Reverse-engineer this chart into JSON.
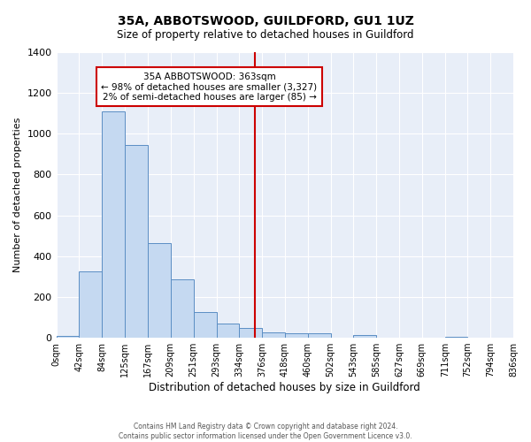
{
  "title": "35A, ABBOTSWOOD, GUILDFORD, GU1 1UZ",
  "subtitle": "Size of property relative to detached houses in Guildford",
  "xlabel": "Distribution of detached houses by size in Guildford",
  "ylabel": "Number of detached properties",
  "bar_edges": [
    0,
    42,
    84,
    125,
    167,
    209,
    251,
    293,
    334,
    376,
    418,
    460,
    502,
    543,
    585,
    627,
    669,
    711,
    752,
    794,
    836
  ],
  "bar_heights": [
    10,
    325,
    1110,
    945,
    465,
    285,
    125,
    70,
    50,
    25,
    20,
    20,
    0,
    15,
    0,
    0,
    0,
    5,
    0,
    0
  ],
  "bar_color": "#c5d9f1",
  "bar_edge_color": "#5b8ec4",
  "tick_labels": [
    "0sqm",
    "42sqm",
    "84sqm",
    "125sqm",
    "167sqm",
    "209sqm",
    "251sqm",
    "293sqm",
    "334sqm",
    "376sqm",
    "418sqm",
    "460sqm",
    "502sqm",
    "543sqm",
    "585sqm",
    "627sqm",
    "669sqm",
    "711sqm",
    "752sqm",
    "794sqm",
    "836sqm"
  ],
  "property_line_x": 363,
  "property_line_color": "#cc0000",
  "annotation_title": "35A ABBOTSWOOD: 363sqm",
  "annotation_line1": "← 98% of detached houses are smaller (3,327)",
  "annotation_line2": "2% of semi-detached houses are larger (85) →",
  "ylim": [
    0,
    1400
  ],
  "yticks": [
    0,
    200,
    400,
    600,
    800,
    1000,
    1200,
    1400
  ],
  "bg_color": "#e8eef8",
  "footer_line1": "Contains HM Land Registry data © Crown copyright and database right 2024.",
  "footer_line2": "Contains public sector information licensed under the Open Government Licence v3.0."
}
